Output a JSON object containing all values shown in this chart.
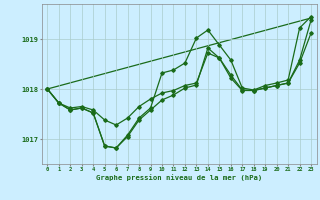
{
  "background_color": "#cceeff",
  "grid_color": "#aacccc",
  "line_color": "#1a6b1a",
  "title": "Graphe pression niveau de la mer (hPa)",
  "xlim": [
    -0.5,
    23.5
  ],
  "ylim": [
    1016.5,
    1019.7
  ],
  "yticks": [
    1017,
    1018,
    1019
  ],
  "xticks": [
    0,
    1,
    2,
    3,
    4,
    5,
    6,
    7,
    8,
    9,
    10,
    11,
    12,
    13,
    14,
    15,
    16,
    17,
    18,
    19,
    20,
    21,
    22,
    23
  ],
  "series1": [
    1018.0,
    1017.72,
    1017.58,
    1017.62,
    1017.52,
    1016.86,
    1016.82,
    1017.05,
    1017.38,
    1017.58,
    1017.78,
    1017.88,
    1018.02,
    1018.08,
    1018.82,
    1018.62,
    1018.28,
    1017.98,
    1017.97,
    1018.02,
    1018.07,
    1018.12,
    1018.58,
    1019.38
  ],
  "series2": [
    1018.0,
    1017.72,
    1017.62,
    1017.65,
    1017.58,
    1017.38,
    1017.28,
    1017.42,
    1017.65,
    1017.8,
    1017.92,
    1017.97,
    1018.07,
    1018.12,
    1018.72,
    1018.62,
    1018.22,
    1017.97,
    1017.97,
    1018.02,
    1018.07,
    1018.12,
    1018.52,
    1019.12
  ],
  "series3": [
    1018.0,
    1017.72,
    1017.58,
    1017.62,
    1017.52,
    1016.86,
    1016.82,
    1017.08,
    1017.42,
    1017.62,
    1018.32,
    1018.38,
    1018.52,
    1019.02,
    1019.18,
    1018.88,
    1018.58,
    1018.02,
    1017.98,
    1018.07,
    1018.12,
    1018.18,
    1019.22,
    1019.45
  ],
  "series4_x": [
    0,
    23
  ],
  "series4_y": [
    1018.0,
    1019.42
  ]
}
